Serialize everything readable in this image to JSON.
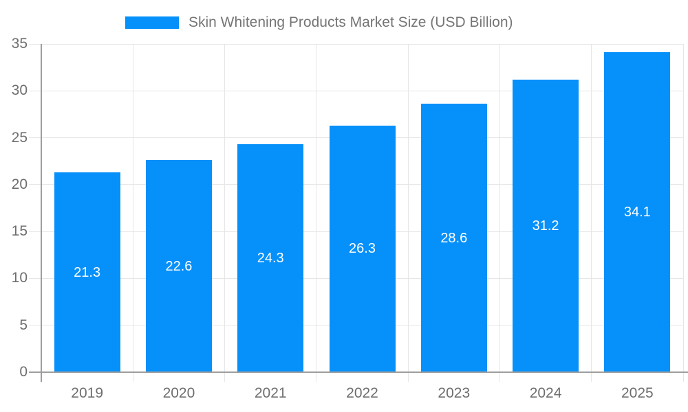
{
  "chart_data": {
    "type": "bar",
    "title": "Skin Whitening Products Market Size (USD Billion)",
    "legend": {
      "position": "top",
      "label": "Skin Whitening Products Market Size (USD Billion)"
    },
    "categories": [
      "2019",
      "2020",
      "2021",
      "2022",
      "2023",
      "2024",
      "2025"
    ],
    "series": [
      {
        "name": "Skin Whitening Products Market Size (USD Billion)",
        "values": [
          21.3,
          22.6,
          24.3,
          26.3,
          28.6,
          31.2,
          34.1
        ]
      }
    ],
    "value_labels": [
      "21.3",
      "22.6",
      "24.3",
      "26.3",
      "28.6",
      "31.2",
      "34.1"
    ],
    "xlabel": "",
    "ylabel": "",
    "ylim": [
      0,
      35
    ],
    "yticks": [
      0,
      5,
      10,
      15,
      20,
      25,
      30,
      35
    ],
    "grid": true,
    "colors": {
      "bar": "#0690fa",
      "bar_value_text": "#ffffff",
      "gridline": "#e6e6e6",
      "axis_line": "#9e9e9e",
      "axis_text": "#6e6e6e",
      "legend_text": "#757575",
      "background": "#ffffff"
    }
  }
}
